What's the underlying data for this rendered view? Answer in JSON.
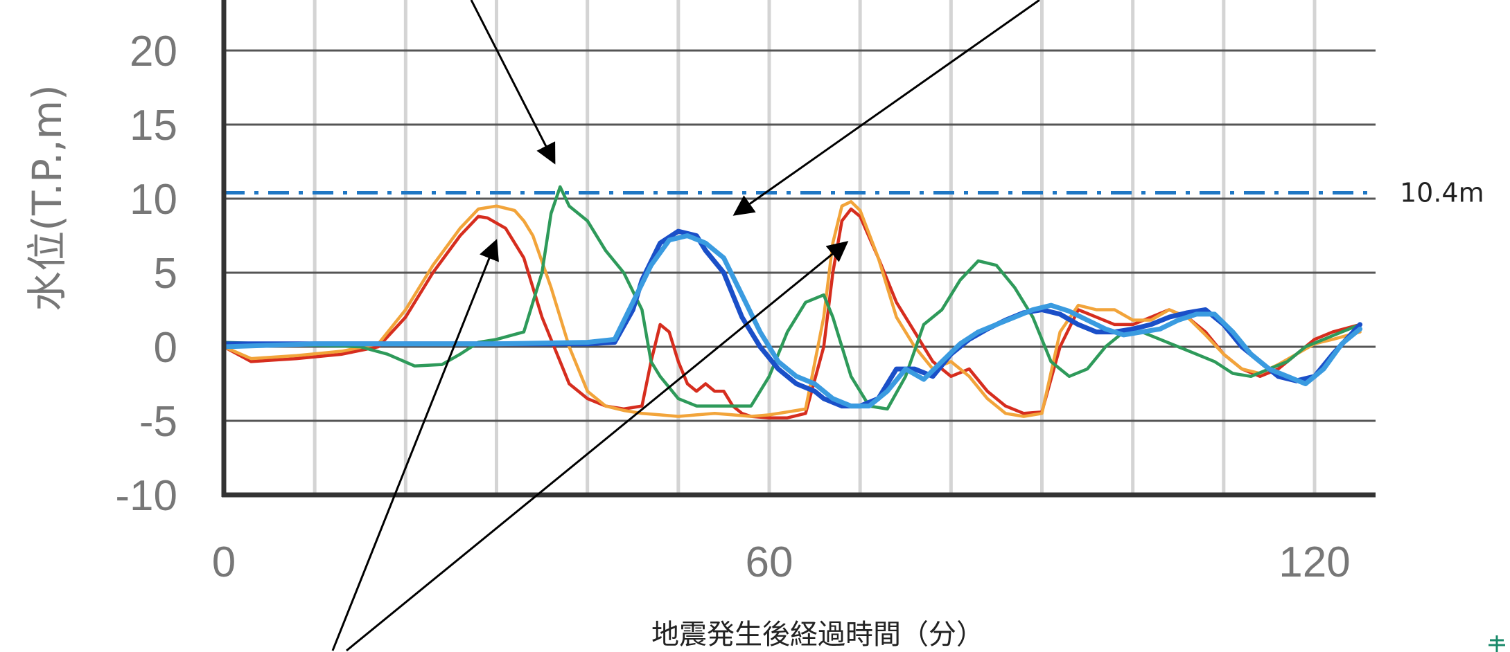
{
  "chart_data": {
    "type": "line",
    "ylabel": "水位(T.P.,m)",
    "xlabel": "地震発生後経過時間（分）",
    "xlim": [
      0,
      125
    ],
    "ylim": [
      -10,
      23
    ],
    "x_ticks": [
      0,
      60,
      120
    ],
    "y_ticks": [
      20,
      15,
      10,
      5,
      0,
      -5,
      -10
    ],
    "grid": true,
    "reference_line": {
      "y": 10.4,
      "label": "10.4m",
      "color": "#1f77c4",
      "style": "dash-dot"
    },
    "series": [
      {
        "color": "#d62d1e",
        "x": [
          0,
          3,
          8,
          13,
          17,
          20,
          23,
          26,
          28,
          29,
          31,
          33,
          35,
          37,
          38,
          40,
          42,
          44,
          46,
          47,
          48,
          49,
          50,
          51,
          52,
          53,
          54,
          55,
          56,
          57,
          58,
          60,
          62,
          64,
          66,
          67,
          68,
          69,
          70,
          72,
          74,
          76,
          78,
          80,
          82,
          84,
          86,
          88,
          90,
          92,
          94,
          96,
          98,
          100,
          102,
          104,
          106,
          108,
          110,
          112,
          114,
          116,
          118,
          120,
          122,
          125
        ],
        "y": [
          0,
          -1,
          -0.8,
          -0.5,
          0,
          2,
          5,
          7.5,
          8.8,
          8.7,
          8,
          6,
          2,
          -1,
          -2.5,
          -3.5,
          -4,
          -4.2,
          -4,
          -1,
          1.5,
          1,
          -1,
          -2.5,
          -3,
          -2.5,
          -3,
          -3,
          -4,
          -4.5,
          -4.7,
          -4.8,
          -4.8,
          -4.5,
          0,
          5,
          8.5,
          9.3,
          8.8,
          6,
          3,
          1,
          -1,
          -2,
          -1.5,
          -3,
          -4,
          -4.5,
          -4.4,
          0,
          2.5,
          2,
          1.5,
          1.5,
          2,
          2.5,
          2,
          1,
          -0.5,
          -1.5,
          -2,
          -1.5,
          -0.5,
          0.5,
          1,
          1.5
        ]
      },
      {
        "color": "#f2a43a",
        "x": [
          0,
          3,
          8,
          13,
          17,
          20,
          23,
          26,
          28,
          30,
          32,
          33,
          34,
          36,
          38,
          40,
          42,
          44,
          46,
          48,
          50,
          52,
          54,
          56,
          58,
          60,
          62,
          64,
          66,
          67,
          68,
          69,
          70,
          72,
          74,
          76,
          78,
          80,
          82,
          84,
          86,
          88,
          90,
          92,
          94,
          96,
          98,
          100,
          102,
          104,
          106,
          108,
          110,
          112,
          114,
          116,
          118,
          120,
          122,
          125
        ],
        "y": [
          0,
          -0.8,
          -0.6,
          -0.3,
          0.2,
          2.5,
          5.5,
          8,
          9.3,
          9.5,
          9.2,
          8.5,
          7.5,
          4,
          0,
          -3,
          -4,
          -4.3,
          -4.5,
          -4.6,
          -4.7,
          -4.6,
          -4.5,
          -4.6,
          -4.7,
          -4.6,
          -4.4,
          -4.2,
          2,
          7,
          9.5,
          9.8,
          9.2,
          6,
          2,
          0,
          -1.5,
          -1,
          -2,
          -3.5,
          -4.5,
          -4.7,
          -4.5,
          1,
          2.8,
          2.5,
          2.5,
          1.8,
          1.8,
          2.5,
          2,
          0.8,
          -0.5,
          -1.5,
          -1.8,
          -1.2,
          -0.5,
          0.2,
          0.5,
          1
        ]
      },
      {
        "color": "#2e9a5a",
        "x": [
          0,
          5,
          10,
          15,
          18,
          21,
          24,
          26,
          28,
          30,
          33,
          35,
          36,
          37,
          38,
          40,
          42,
          44,
          46,
          47,
          48,
          50,
          52,
          55,
          58,
          60,
          62,
          64,
          66,
          67,
          69,
          71,
          73,
          75,
          77,
          79,
          81,
          83,
          85,
          87,
          89,
          91,
          93,
          95,
          97,
          99,
          101,
          103,
          105,
          107,
          109,
          111,
          113,
          115,
          117,
          119,
          121,
          123,
          125
        ],
        "y": [
          0.3,
          0.2,
          0.1,
          0,
          -0.5,
          -1.3,
          -1.2,
          -0.5,
          0.3,
          0.5,
          1,
          5,
          9,
          10.8,
          9.5,
          8.5,
          6.5,
          5,
          2.5,
          -1,
          -2,
          -3.5,
          -4,
          -4,
          -4,
          -2,
          1,
          3,
          3.5,
          2,
          -2,
          -4,
          -4.2,
          -2,
          1.5,
          2.5,
          4.5,
          5.8,
          5.5,
          4,
          2,
          -1,
          -2,
          -1.5,
          0,
          1,
          1,
          0.5,
          0,
          -0.5,
          -1,
          -1.8,
          -2,
          -1.5,
          -1,
          0,
          0.5,
          1,
          1.5
        ]
      },
      {
        "color": "#1a4fc8",
        "x": [
          0,
          10,
          20,
          30,
          40,
          43,
          45,
          46,
          48,
          50,
          52,
          53,
          55,
          57,
          59,
          61,
          63,
          65,
          66,
          68,
          70,
          72,
          74,
          76,
          78,
          80,
          82,
          84,
          86,
          88,
          90,
          92,
          94,
          96,
          98,
          100,
          102,
          104,
          106,
          108,
          110,
          112,
          114,
          116,
          118,
          120,
          122,
          125
        ],
        "y": [
          0.2,
          0.2,
          0.2,
          0.2,
          0.2,
          0.3,
          2.5,
          4.5,
          7,
          7.8,
          7.5,
          6.5,
          5,
          2,
          0,
          -1.5,
          -2.5,
          -3,
          -3.5,
          -4,
          -4,
          -3.5,
          -1.5,
          -1.5,
          -2,
          -0.5,
          0.5,
          1.2,
          1.8,
          2.3,
          2.5,
          2.2,
          1.5,
          1,
          1,
          1.2,
          1.5,
          2,
          2.3,
          2.5,
          1.5,
          0,
          -1,
          -2,
          -2.3,
          -2,
          -0.5,
          1.5
        ]
      },
      {
        "color": "#3a9be0",
        "x": [
          0,
          10,
          20,
          30,
          40,
          43,
          45,
          47,
          49,
          51,
          53,
          55,
          57,
          59,
          61,
          63,
          65,
          67,
          69,
          71,
          73,
          75,
          77,
          79,
          81,
          83,
          85,
          87,
          89,
          91,
          93,
          95,
          97,
          99,
          101,
          103,
          105,
          107,
          109,
          111,
          113,
          115,
          117,
          119,
          121,
          123,
          125
        ],
        "y": [
          0,
          0.2,
          0.2,
          0.2,
          0.3,
          0.5,
          3,
          5.5,
          7.2,
          7.5,
          7,
          6,
          3.5,
          1,
          -1,
          -2,
          -2.5,
          -3.5,
          -4,
          -4,
          -3,
          -1.5,
          -2.2,
          -1,
          0.2,
          1,
          1.5,
          2,
          2.5,
          2.8,
          2.4,
          1.8,
          1.2,
          0.8,
          1,
          1.2,
          1.8,
          2.2,
          2.2,
          1,
          -0.5,
          -1.5,
          -2,
          -2.5,
          -1.5,
          0.2,
          1.2
        ]
      }
    ]
  },
  "annotations": {
    "arrow_count": 5
  }
}
